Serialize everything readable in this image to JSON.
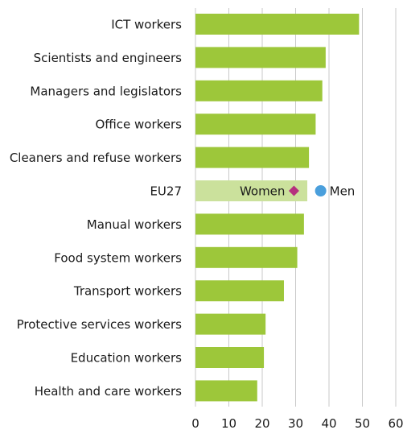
{
  "chart_data": {
    "type": "bar",
    "orientation": "horizontal",
    "categories": [
      "ICT workers",
      "Scientists and engineers",
      "Managers and legislators",
      "Office workers",
      "Cleaners and refuse workers",
      "EU27",
      "Manual workers",
      "Food system workers",
      "Transport workers",
      "Protective services workers",
      "Education workers",
      "Health and care workers"
    ],
    "values": [
      49,
      39,
      38,
      36,
      34,
      33.5,
      32.5,
      30.5,
      26.5,
      21,
      20.5,
      18.5
    ],
    "highlight_category": "EU27",
    "markers": [
      {
        "name": "Women",
        "category": "EU27",
        "value": 29.5,
        "shape": "diamond",
        "color": "#b5307e"
      },
      {
        "name": "Men",
        "category": "EU27",
        "value": 37.5,
        "shape": "circle",
        "color": "#4a9fdc"
      }
    ],
    "xlim": [
      0,
      60
    ],
    "xticks": [
      0,
      10,
      20,
      30,
      40,
      50,
      60
    ],
    "grid": true,
    "colors": {
      "bar": "#9dc73a",
      "highlight_bar": "#cbe19c",
      "grid": "#c9c9c9"
    }
  }
}
